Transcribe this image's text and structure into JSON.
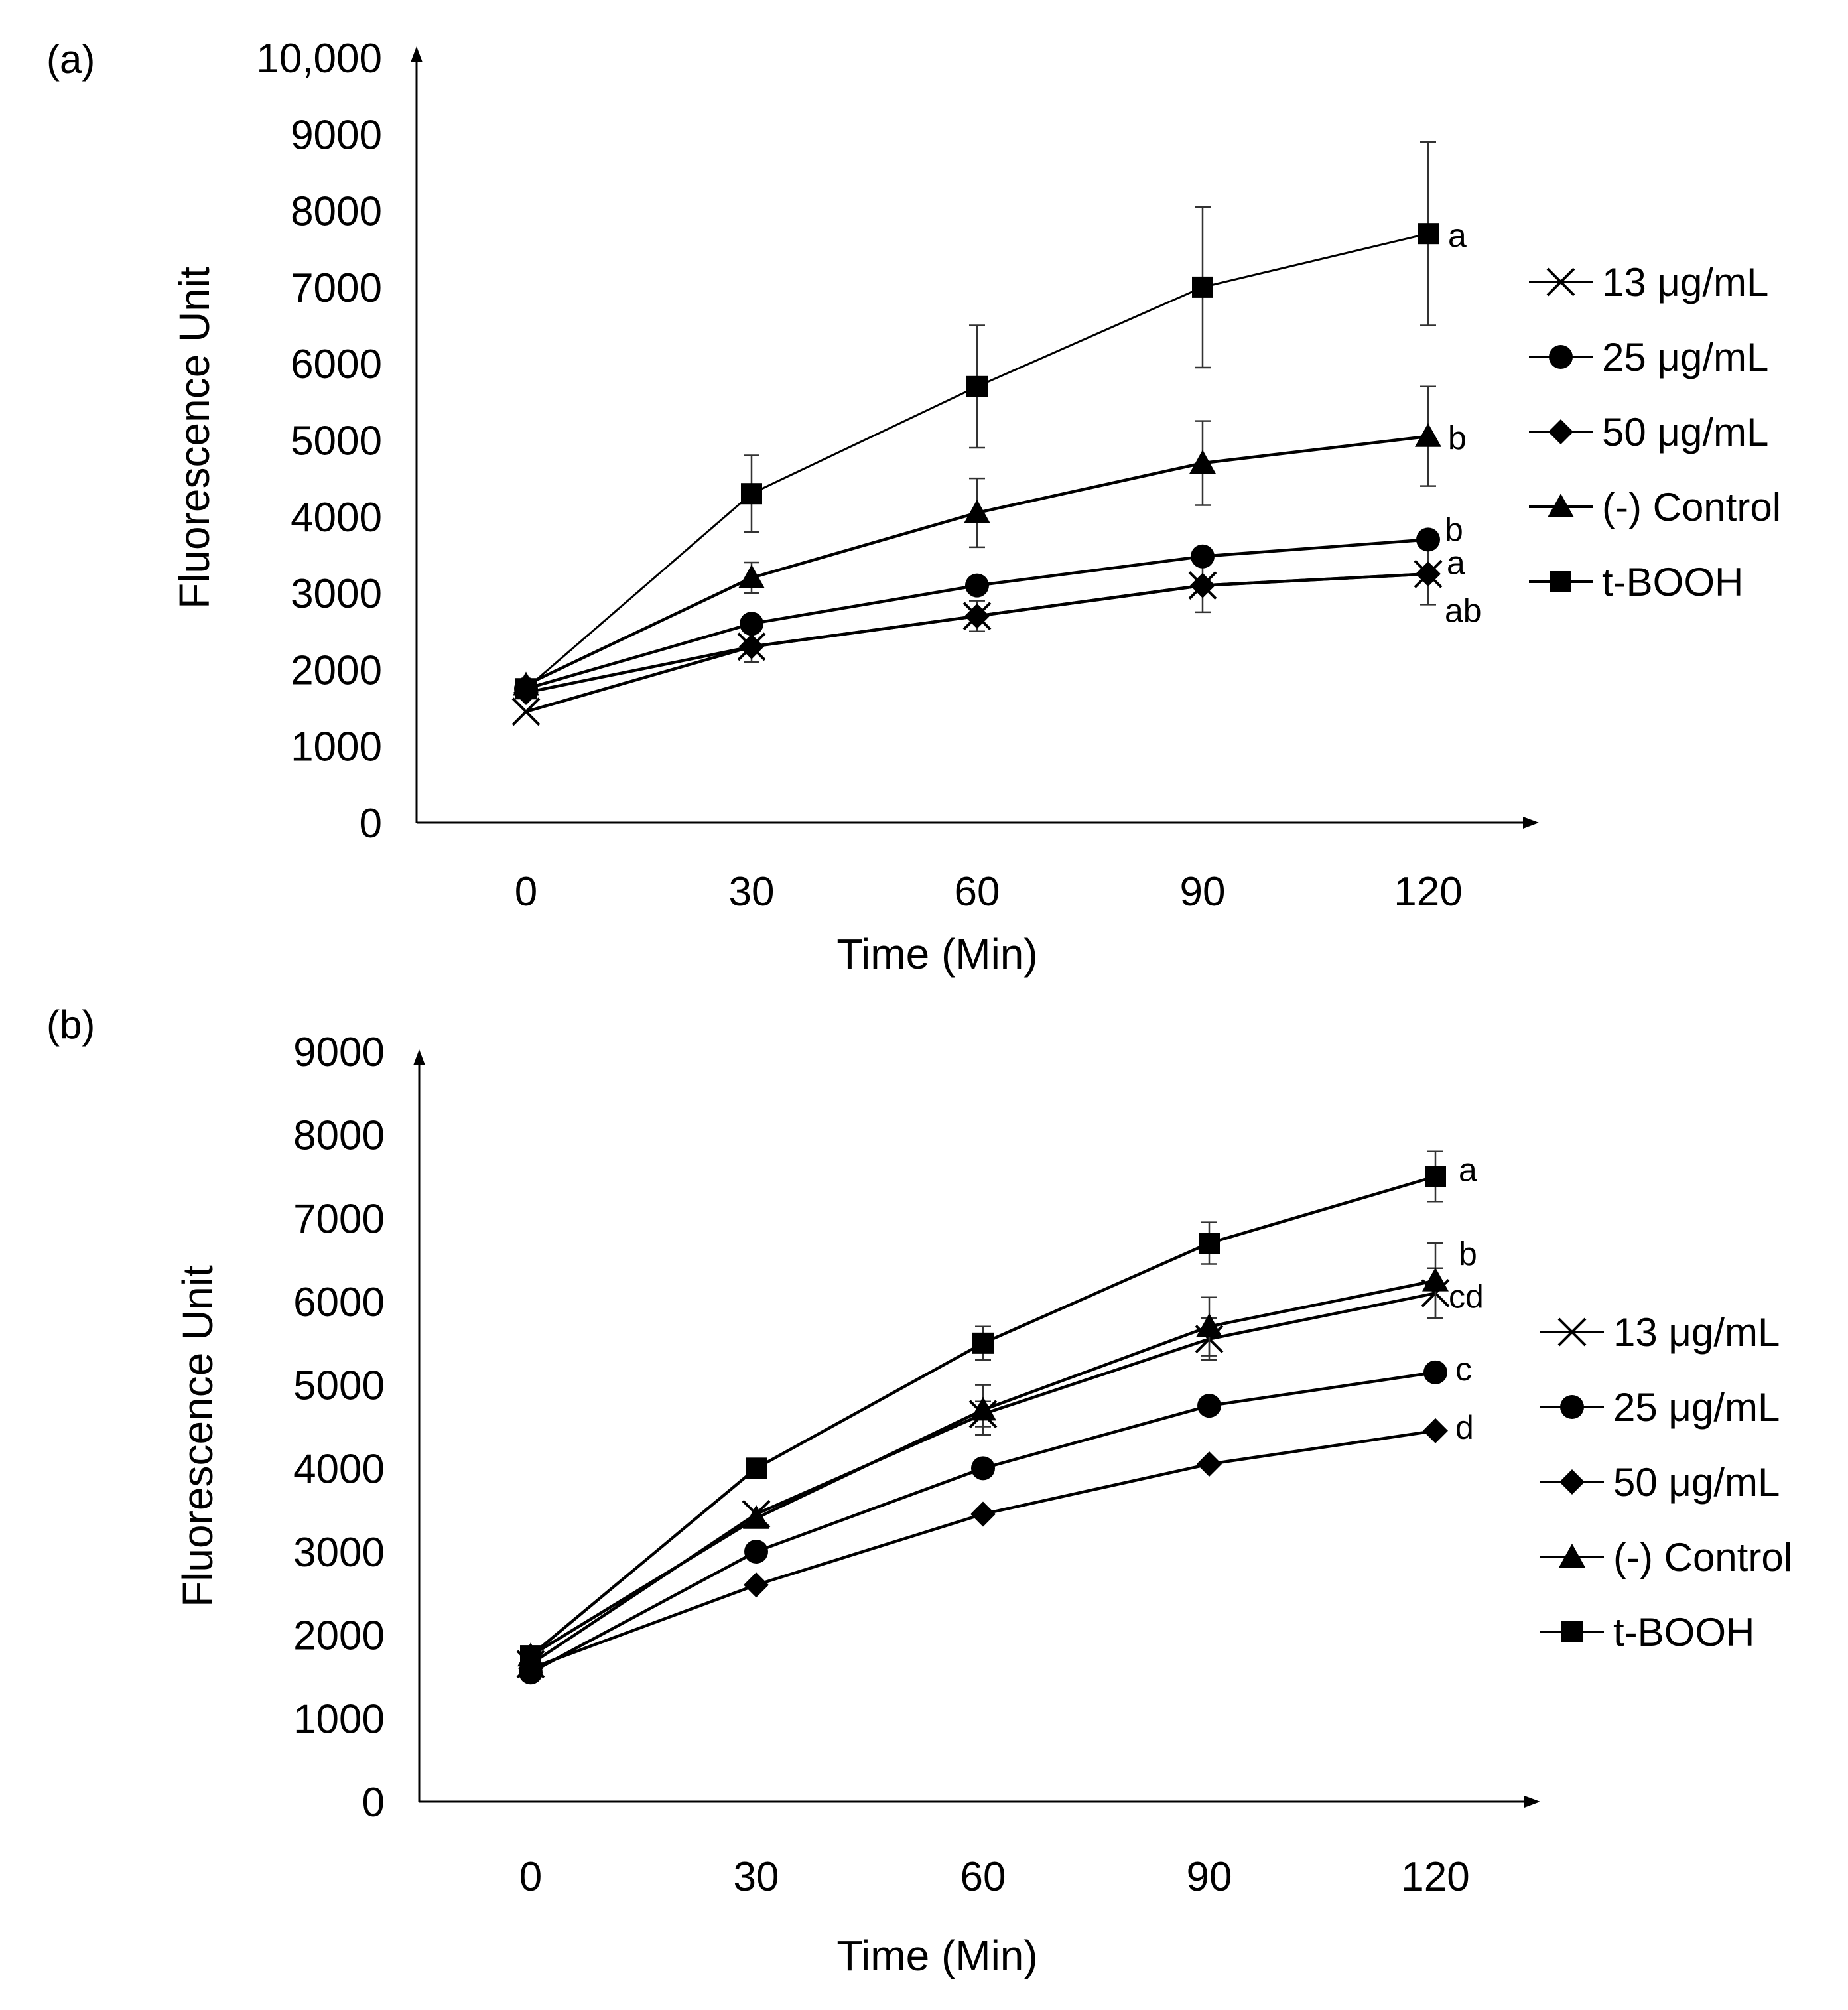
{
  "chart_data": [
    {
      "type": "line",
      "panel_label": "(a)",
      "xlabel": "Time (Min)",
      "ylabel": "Fluorescence Unit",
      "x": [
        0,
        30,
        60,
        90,
        120
      ],
      "x_tick_labels": [
        "0",
        "30",
        "60",
        "90",
        "120"
      ],
      "ylim": [
        0,
        10000
      ],
      "y_tick_labels": [
        "0",
        "1000",
        "2000",
        "3000",
        "4000",
        "5000",
        "6000",
        "7000",
        "8000",
        "9000",
        "10,000"
      ],
      "grid": false,
      "legend_position": "right",
      "series": [
        {
          "name": "13 μg/mL",
          "marker": "x",
          "values": [
            1450,
            2300,
            2700,
            3100,
            3250
          ],
          "errors": [
            0,
            200,
            200,
            350,
            400
          ],
          "sig_label": "a"
        },
        {
          "name": "25 μg/mL",
          "marker": "circle",
          "values": [
            1750,
            2600,
            3100,
            3480,
            3700
          ],
          "errors": [
            0,
            0,
            0,
            0,
            0
          ],
          "sig_label": "b"
        },
        {
          "name": "50 μg/mL",
          "marker": "diamond",
          "values": [
            1700,
            2300,
            2700,
            3100,
            3250
          ],
          "errors": [
            0,
            0,
            0,
            0,
            0
          ],
          "sig_label": "ab"
        },
        {
          "name": "(-) Control",
          "marker": "triangle",
          "values": [
            1800,
            3200,
            4050,
            4700,
            5050
          ],
          "errors": [
            0,
            200,
            450,
            550,
            650
          ],
          "sig_label": "b"
        },
        {
          "name": "t-BOOH",
          "marker": "square",
          "values": [
            1750,
            4300,
            5700,
            7000,
            7700
          ],
          "errors": [
            0,
            500,
            800,
            1050,
            1200
          ],
          "sig_label": "a"
        }
      ]
    },
    {
      "type": "line",
      "panel_label": "(b)",
      "xlabel": "Time (Min)",
      "ylabel": "Fluorescence Unit",
      "x": [
        0,
        30,
        60,
        90,
        120
      ],
      "x_tick_labels": [
        "0",
        "30",
        "60",
        "90",
        "120"
      ],
      "ylim": [
        0,
        9000
      ],
      "y_tick_labels": [
        "0",
        "1000",
        "2000",
        "3000",
        "4000",
        "5000",
        "6000",
        "7000",
        "8000",
        "9000"
      ],
      "grid": false,
      "legend_position": "right",
      "series": [
        {
          "name": "13 μg/mL",
          "marker": "x",
          "values": [
            1650,
            3450,
            4650,
            5550,
            6100
          ],
          "errors": [
            0,
            0,
            150,
            250,
            300
          ],
          "sig_label": "cd"
        },
        {
          "name": "25 μg/mL",
          "marker": "circle",
          "values": [
            1550,
            3000,
            4000,
            4750,
            5150
          ],
          "errors": [
            0,
            0,
            0,
            0,
            0
          ],
          "sig_label": "c"
        },
        {
          "name": "50 μg/mL",
          "marker": "diamond",
          "values": [
            1600,
            2600,
            3450,
            4050,
            4450
          ],
          "errors": [
            0,
            0,
            0,
            0,
            0
          ],
          "sig_label": "d"
        },
        {
          "name": "(-) Control",
          "marker": "triangle",
          "values": [
            1750,
            3400,
            4700,
            5700,
            6250
          ],
          "errors": [
            0,
            0,
            300,
            350,
            450
          ],
          "sig_label": "b"
        },
        {
          "name": "t-BOOH",
          "marker": "square",
          "values": [
            1750,
            4000,
            5500,
            6700,
            7500
          ],
          "errors": [
            0,
            0,
            200,
            250,
            300
          ],
          "sig_label": "a"
        }
      ]
    }
  ]
}
